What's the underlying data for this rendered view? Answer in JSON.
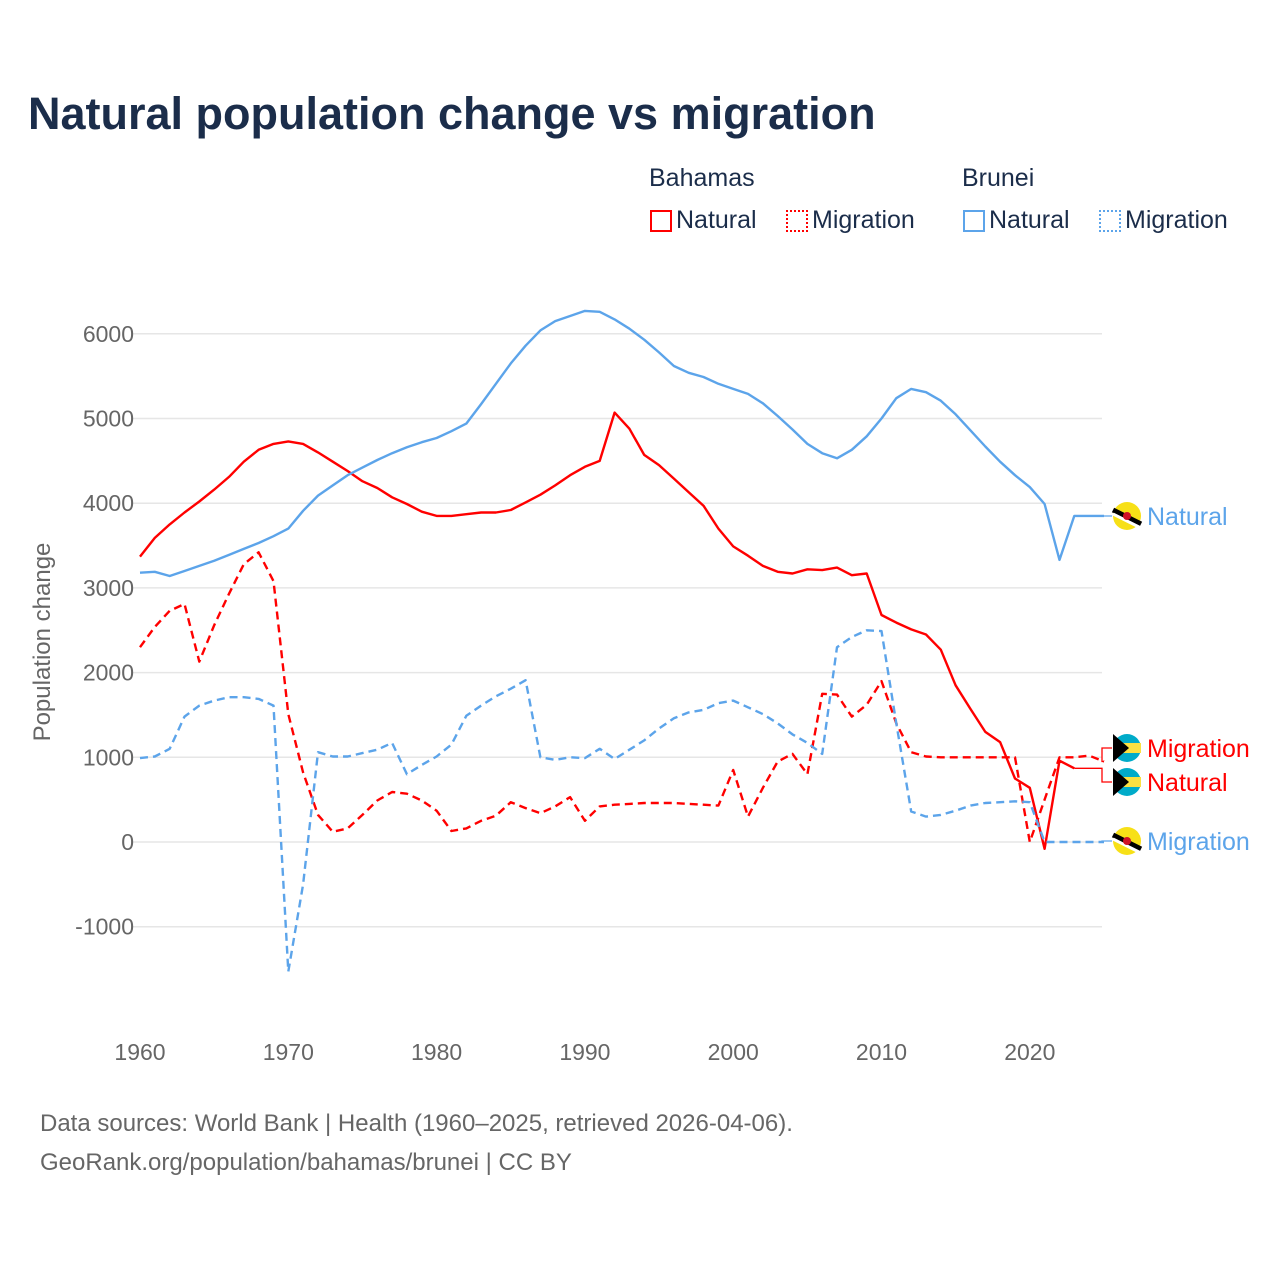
{
  "chart_data": {
    "type": "line",
    "title": "Natural population change vs migration",
    "ylabel": "Population change",
    "xlabel": "",
    "xlim": [
      1960,
      2025
    ],
    "ylim": [
      -2000,
      6500
    ],
    "xticks": [
      "1960",
      "1970",
      "1980",
      "1990",
      "2000",
      "2010",
      "2020"
    ],
    "yticks": [
      "-1000",
      "0",
      "1000",
      "2000",
      "3000",
      "4000",
      "5000",
      "6000"
    ],
    "grid": true,
    "legend": {
      "placement": "top-right",
      "groups": [
        {
          "name": "Bahamas",
          "items": [
            "Natural",
            "Migration"
          ]
        },
        {
          "name": "Brunei",
          "items": [
            "Natural",
            "Migration"
          ]
        }
      ]
    },
    "series": [
      {
        "name": "Bahamas Natural",
        "label": "Natural",
        "color": "#ff0000",
        "dash": false,
        "start": 1960,
        "values": [
          3370,
          3590,
          3750,
          3890,
          4020,
          4160,
          4310,
          4490,
          4630,
          4700,
          4730,
          4700,
          4600,
          4490,
          4380,
          4260,
          4180,
          4070,
          3990,
          3900,
          3850,
          3850,
          3870,
          3890,
          3890,
          3920,
          4010,
          4100,
          4210,
          4330,
          4430,
          4500,
          5070,
          4880,
          4570,
          4450,
          4290,
          4130,
          3970,
          3700,
          3490,
          3380,
          3260,
          3190,
          3170,
          3220,
          3210,
          3240,
          3150,
          3170,
          2680,
          2590,
          2510,
          2450,
          2270,
          1850,
          1570,
          1300,
          1180,
          750,
          640,
          -80,
          960,
          870
        ]
      },
      {
        "name": "Bahamas Migration",
        "label": "Migration",
        "color": "#ff0000",
        "dash": true,
        "start": 1960,
        "values": [
          2300,
          2540,
          2730,
          2810,
          2130,
          2560,
          2930,
          3280,
          3420,
          3080,
          1510,
          820,
          320,
          120,
          160,
          320,
          490,
          590,
          570,
          490,
          370,
          130,
          160,
          250,
          310,
          470,
          400,
          340,
          420,
          530,
          250,
          420,
          440,
          450,
          460,
          460,
          460,
          450,
          440,
          430,
          850,
          300,
          640,
          950,
          1040,
          800,
          1750,
          1740,
          1480,
          1620,
          1900,
          1400,
          1060,
          1010,
          1000,
          1000,
          1000,
          1000,
          1000,
          1000,
          0,
          500,
          1000,
          1000,
          1020,
          950
        ]
      },
      {
        "name": "Brunei Natural",
        "label": "Natural",
        "color": "#5ca4ea",
        "dash": false,
        "start": 1960,
        "values": [
          3180,
          3190,
          3140,
          3200,
          3260,
          3320,
          3390,
          3460,
          3530,
          3610,
          3700,
          3910,
          4090,
          4210,
          4330,
          4420,
          4510,
          4590,
          4660,
          4720,
          4770,
          4850,
          4940,
          5170,
          5410,
          5650,
          5860,
          6040,
          6150,
          6210,
          6270,
          6260,
          6170,
          6060,
          5930,
          5780,
          5620,
          5540,
          5490,
          5410,
          5350,
          5290,
          5180,
          5030,
          4870,
          4700,
          4590,
          4530,
          4630,
          4790,
          5000,
          5240,
          5350,
          5310,
          5210,
          5050,
          4860,
          4670,
          4490,
          4330,
          4190,
          3990,
          3330,
          3850,
          3850,
          3850
        ]
      },
      {
        "name": "Brunei Migration",
        "label": "Migration",
        "color": "#5ca4ea",
        "dash": true,
        "start": 1960,
        "values": [
          990,
          1010,
          1100,
          1480,
          1610,
          1670,
          1710,
          1710,
          1690,
          1610,
          -1530,
          -500,
          1060,
          1010,
          1010,
          1050,
          1090,
          1170,
          800,
          910,
          1010,
          1150,
          1490,
          1610,
          1720,
          1810,
          1910,
          1000,
          970,
          1000,
          990,
          1100,
          980,
          1090,
          1200,
          1340,
          1460,
          1530,
          1560,
          1640,
          1670,
          1590,
          1510,
          1400,
          1270,
          1170,
          1040,
          2300,
          2420,
          2500,
          2490,
          1400,
          360,
          300,
          320,
          370,
          430,
          460,
          470,
          480,
          470,
          0,
          0,
          0,
          0,
          0
        ]
      }
    ]
  },
  "source": {
    "line1": "Data sources: World Bank | Health (1960–2025, retrieved 2026-04-06).",
    "line2": "GeoRank.org/population/bahamas/brunei | CC BY"
  }
}
